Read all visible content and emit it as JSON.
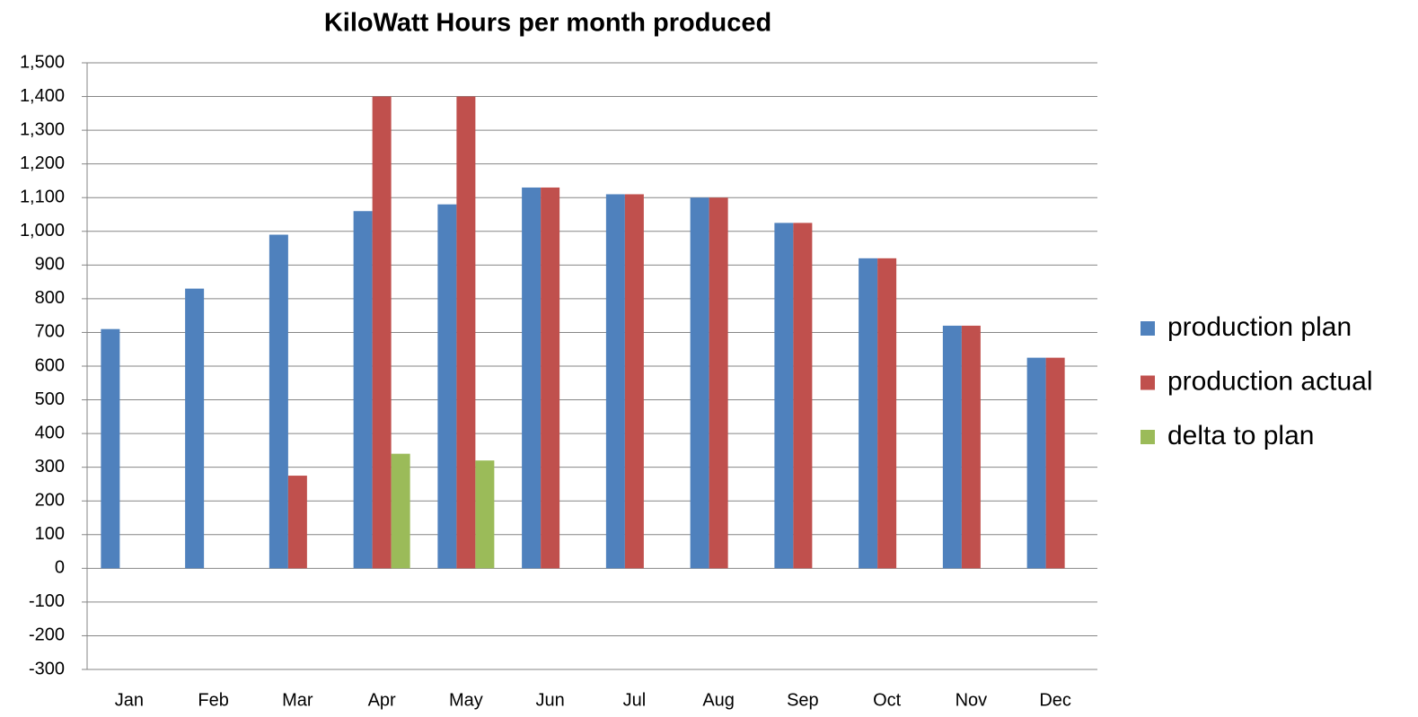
{
  "chart_data": {
    "type": "bar",
    "title": "KiloWatt Hours per month produced",
    "categories": [
      "Jan",
      "Feb",
      "Mar",
      "Apr",
      "May",
      "Jun",
      "Jul",
      "Aug",
      "Sep",
      "Oct",
      "Nov",
      "Dec"
    ],
    "series": [
      {
        "name": "production plan",
        "color": "#4f81bd",
        "values": [
          710,
          830,
          990,
          1060,
          1080,
          1130,
          1110,
          1100,
          1025,
          920,
          720,
          625
        ]
      },
      {
        "name": "production actual",
        "color": "#c0504d",
        "values": [
          null,
          null,
          275,
          1400,
          1400,
          1130,
          1110,
          1100,
          1025,
          920,
          720,
          625
        ]
      },
      {
        "name": "delta to plan",
        "color": "#9bbb59",
        "values": [
          null,
          null,
          null,
          340,
          320,
          null,
          null,
          null,
          null,
          null,
          null,
          null
        ]
      }
    ],
    "ylim": [
      -300,
      1500
    ],
    "yticks": [
      -300,
      -200,
      -100,
      0,
      100,
      200,
      300,
      400,
      500,
      600,
      700,
      800,
      900,
      {
        "value": 1000,
        "label": "1,000"
      },
      {
        "value": 1100,
        "label": "1,100"
      },
      {
        "value": 1200,
        "label": "1,200"
      },
      {
        "value": 1300,
        "label": "1,300"
      },
      {
        "value": 1400,
        "label": "1,400"
      },
      {
        "value": 1500,
        "label": "1,500"
      }
    ],
    "grid": true,
    "legend": "right"
  }
}
